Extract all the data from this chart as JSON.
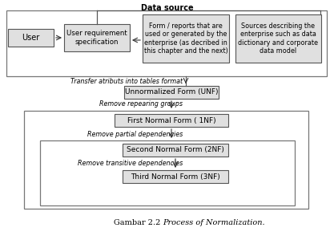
{
  "title": "Data source",
  "caption_normal": "Gambar 2.2 ",
  "caption_italic": "Process of Normalization.",
  "bg_color": "#ffffff",
  "box_fill": "#e0e0e0",
  "box_edge": "#555555",
  "arrow_color": "#333333",
  "text_color": "#000000",
  "line_color": "#555555"
}
